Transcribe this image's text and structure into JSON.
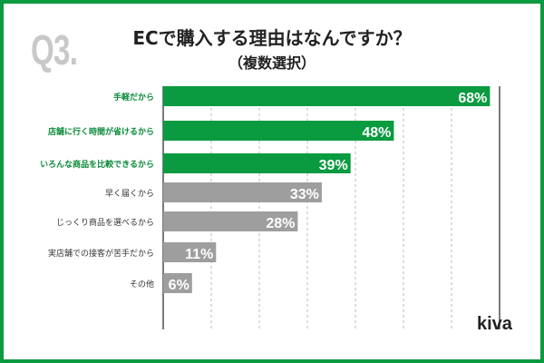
{
  "header": {
    "question_number": "Q3.",
    "title": "ECで購入する理由はなんですか？",
    "subtitle": "（複数選択）"
  },
  "logo": "kiva",
  "chart_data": {
    "type": "bar",
    "orientation": "horizontal",
    "categories": [
      "手軽だから",
      "店舗に行く時間が省けるから",
      "いろんな商品を比較できるから",
      "早く届くから",
      "じっくり商品を選べるから",
      "実店舗での接客が苦手だから",
      "その他"
    ],
    "values": [
      68,
      48,
      39,
      33,
      28,
      11,
      6
    ],
    "unit": "%",
    "data_labels": [
      "68%",
      "48%",
      "39%",
      "33%",
      "28%",
      "11%",
      "6%"
    ],
    "highlighted": [
      true,
      true,
      true,
      false,
      false,
      false,
      false
    ],
    "xlim": [
      0,
      70
    ],
    "grid": true,
    "grid_step": 10,
    "colors": {
      "highlight": "#0a9a40",
      "normal": "#9e9e9e",
      "highlight_label": "#0a8a3a",
      "normal_label": "#333333",
      "frame": "#0a9a40"
    }
  }
}
